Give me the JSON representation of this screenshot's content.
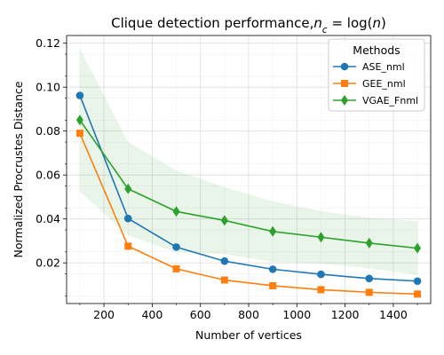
{
  "chart_data": {
    "type": "line",
    "title": "Clique detection performance,",
    "title_math": "n",
    "title_math_sub": "c",
    "title_tail": " = log(",
    "title_tail_math": "n",
    "title_end": ")",
    "xlabel": "Number of vertices",
    "ylabel": "Normalized Procrustes Distance",
    "xlim": [
      45,
      1555
    ],
    "ylim": [
      0.0015,
      0.1235
    ],
    "xticks": [
      200,
      400,
      600,
      800,
      1000,
      1200,
      1400
    ],
    "yticks": [
      0.02,
      0.04,
      0.06,
      0.08,
      0.1,
      0.12
    ],
    "ytick_labels": [
      "0.02",
      "0.04",
      "0.06",
      "0.08",
      "0.10",
      "0.12"
    ],
    "grid": true,
    "legend": {
      "title": "Methods",
      "position": "top-right"
    },
    "x": [
      100,
      300,
      500,
      700,
      900,
      1100,
      1300,
      1500
    ],
    "series": [
      {
        "name": "ASE_nml",
        "color": "#1f77b4",
        "marker": "circle",
        "values": [
          0.0962,
          0.0402,
          0.0272,
          0.0208,
          0.0171,
          0.0148,
          0.0129,
          0.0117
        ]
      },
      {
        "name": "GEE_nml",
        "color": "#ff7f0e",
        "marker": "square",
        "values": [
          0.079,
          0.0276,
          0.0173,
          0.0122,
          0.0096,
          0.0078,
          0.0066,
          0.0058
        ]
      },
      {
        "name": "VGAE_Fnml",
        "color": "#2ca02c",
        "marker": "diamond",
        "values": [
          0.085,
          0.0537,
          0.0434,
          0.0393,
          0.0343,
          0.0317,
          0.029,
          0.0267
        ],
        "band_upper": [
          0.1175,
          0.075,
          0.062,
          0.0545,
          0.048,
          0.0435,
          0.0405,
          0.039
        ],
        "band_lower": [
          0.0525,
          0.0325,
          0.0248,
          0.024,
          0.0205,
          0.0198,
          0.0175,
          0.0145
        ],
        "band_color": "#2ca02c"
      }
    ]
  }
}
